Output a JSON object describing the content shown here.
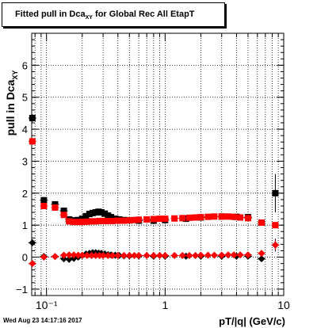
{
  "chart_data": {
    "type": "scatter",
    "title_main": "Fitted pull in Dca",
    "title_sub": "XY",
    "title_rest": " for Global Rec All EtapT",
    "ylabel_main": "pull in Dca",
    "ylabel_sub": "XY",
    "xlabel": "pT/|q| (GeV/c)",
    "xscale": "log",
    "xlim": [
      0.075,
      10
    ],
    "ylim": [
      -1.2,
      7
    ],
    "yticks": [
      -1,
      0,
      1,
      2,
      3,
      4,
      5,
      6
    ],
    "ytick_labels": [
      "−1",
      "0",
      "1",
      "2",
      "3",
      "4",
      "5",
      "6"
    ],
    "xticks": [
      0.1,
      1,
      10
    ],
    "xtick_labels": [
      "10⁻¹",
      "1",
      "10"
    ],
    "grid": true,
    "legend": "none",
    "footer": "Wed Aug 23 14:17:16 2017",
    "series": [
      {
        "marker": "square",
        "color": "#000000",
        "x": [
          0.076,
          0.095,
          0.118,
          0.14,
          0.155,
          0.17,
          0.185,
          0.2,
          0.215,
          0.23,
          0.245,
          0.26,
          0.275,
          0.29,
          0.31,
          0.33,
          0.35,
          0.38,
          0.41,
          0.45,
          0.5,
          0.6,
          0.8,
          1.0,
          1.5,
          2.0,
          3.0,
          4.0,
          5.0,
          6.5,
          8.5
        ],
        "y": [
          4.35,
          1.78,
          1.65,
          1.45,
          1.18,
          1.15,
          1.16,
          1.2,
          1.28,
          1.35,
          1.38,
          1.4,
          1.42,
          1.4,
          1.36,
          1.3,
          1.25,
          1.2,
          1.18,
          1.16,
          1.15,
          1.14,
          1.14,
          1.16,
          1.2,
          1.24,
          1.27,
          1.26,
          1.25,
          1.08,
          2.0
        ],
        "yerr": [
          0.12,
          0.05,
          0.05,
          0.05,
          0.04,
          0.03,
          0.03,
          0.03,
          0.03,
          0.03,
          0.03,
          0.03,
          0.03,
          0.03,
          0.03,
          0.03,
          0.03,
          0.03,
          0.03,
          0.03,
          0.03,
          0.03,
          0.03,
          0.03,
          0.03,
          0.03,
          0.03,
          0.04,
          0.05,
          0.08,
          0.6
        ]
      },
      {
        "marker": "square",
        "color": "#ff0000",
        "x": [
          0.076,
          0.095,
          0.118,
          0.14,
          0.155,
          0.17,
          0.185,
          0.2,
          0.22,
          0.24,
          0.26,
          0.28,
          0.3,
          0.33,
          0.36,
          0.4,
          0.45,
          0.5,
          0.55,
          0.6,
          0.7,
          0.8,
          0.9,
          1.0,
          1.2,
          1.4,
          1.6,
          1.8,
          2.0,
          2.3,
          2.6,
          3.0,
          3.4,
          3.8,
          4.3,
          5.0,
          6.5,
          8.5
        ],
        "y": [
          3.62,
          1.6,
          1.55,
          1.32,
          1.12,
          1.1,
          1.1,
          1.1,
          1.11,
          1.12,
          1.12,
          1.13,
          1.13,
          1.13,
          1.13,
          1.14,
          1.14,
          1.15,
          1.16,
          1.17,
          1.18,
          1.19,
          1.2,
          1.2,
          1.21,
          1.22,
          1.23,
          1.24,
          1.25,
          1.26,
          1.27,
          1.27,
          1.27,
          1.26,
          1.24,
          1.22,
          1.08,
          1.0
        ],
        "yerr": [
          0.1,
          0.05,
          0.05,
          0.04,
          0.03,
          0.03,
          0.03,
          0.03,
          0.03,
          0.03,
          0.03,
          0.03,
          0.03,
          0.03,
          0.03,
          0.03,
          0.03,
          0.03,
          0.03,
          0.03,
          0.03,
          0.03,
          0.03,
          0.03,
          0.03,
          0.03,
          0.03,
          0.03,
          0.03,
          0.03,
          0.03,
          0.03,
          0.03,
          0.03,
          0.04,
          0.05,
          0.08,
          0.1
        ]
      },
      {
        "marker": "diamond",
        "color": "#000000",
        "x": [
          0.076,
          0.095,
          0.118,
          0.14,
          0.155,
          0.17,
          0.185,
          0.2,
          0.215,
          0.23,
          0.245,
          0.26,
          0.275,
          0.29,
          0.31,
          0.33,
          0.35,
          0.38,
          0.41,
          0.45,
          0.5,
          0.6,
          0.8,
          1.0,
          1.5,
          2.0,
          3.0,
          4.0,
          5.0,
          6.5,
          8.5
        ],
        "y": [
          0.45,
          0.02,
          0.02,
          -0.05,
          -0.07,
          -0.04,
          0.0,
          0.05,
          0.1,
          0.12,
          0.14,
          0.14,
          0.13,
          0.12,
          0.1,
          0.08,
          0.07,
          0.06,
          0.05,
          0.04,
          0.04,
          0.04,
          0.03,
          0.03,
          0.03,
          0.03,
          0.03,
          0.03,
          0.03,
          -0.05,
          0.38
        ],
        "yerr": [
          0.06,
          0.03,
          0.03,
          0.03,
          0.02,
          0.02,
          0.02,
          0.02,
          0.02,
          0.02,
          0.02,
          0.02,
          0.02,
          0.02,
          0.02,
          0.02,
          0.02,
          0.02,
          0.02,
          0.02,
          0.02,
          0.02,
          0.02,
          0.02,
          0.02,
          0.02,
          0.02,
          0.02,
          0.03,
          0.05,
          0.2
        ]
      },
      {
        "marker": "diamond",
        "color": "#ff0000",
        "x": [
          0.076,
          0.095,
          0.118,
          0.14,
          0.155,
          0.17,
          0.185,
          0.2,
          0.22,
          0.24,
          0.26,
          0.28,
          0.3,
          0.33,
          0.36,
          0.4,
          0.45,
          0.5,
          0.55,
          0.6,
          0.7,
          0.8,
          0.9,
          1.0,
          1.2,
          1.4,
          1.6,
          1.8,
          2.0,
          2.3,
          2.6,
          3.0,
          3.4,
          3.8,
          4.3,
          5.0,
          6.5,
          8.5
        ],
        "y": [
          -0.2,
          0.0,
          0.02,
          0.06,
          0.07,
          0.07,
          0.06,
          0.06,
          0.05,
          0.05,
          0.05,
          0.05,
          0.05,
          0.05,
          0.05,
          0.05,
          0.05,
          0.05,
          0.05,
          0.05,
          0.05,
          0.05,
          0.05,
          0.05,
          0.05,
          0.05,
          0.05,
          0.05,
          0.06,
          0.06,
          0.06,
          0.06,
          0.07,
          0.07,
          0.07,
          0.07,
          0.12,
          0.38
        ],
        "yerr": [
          0.05,
          0.03,
          0.03,
          0.02,
          0.02,
          0.02,
          0.02,
          0.02,
          0.02,
          0.02,
          0.02,
          0.02,
          0.02,
          0.02,
          0.02,
          0.02,
          0.02,
          0.02,
          0.02,
          0.02,
          0.02,
          0.02,
          0.02,
          0.02,
          0.02,
          0.02,
          0.02,
          0.02,
          0.02,
          0.02,
          0.02,
          0.02,
          0.02,
          0.02,
          0.03,
          0.03,
          0.05,
          0.15
        ]
      }
    ]
  }
}
